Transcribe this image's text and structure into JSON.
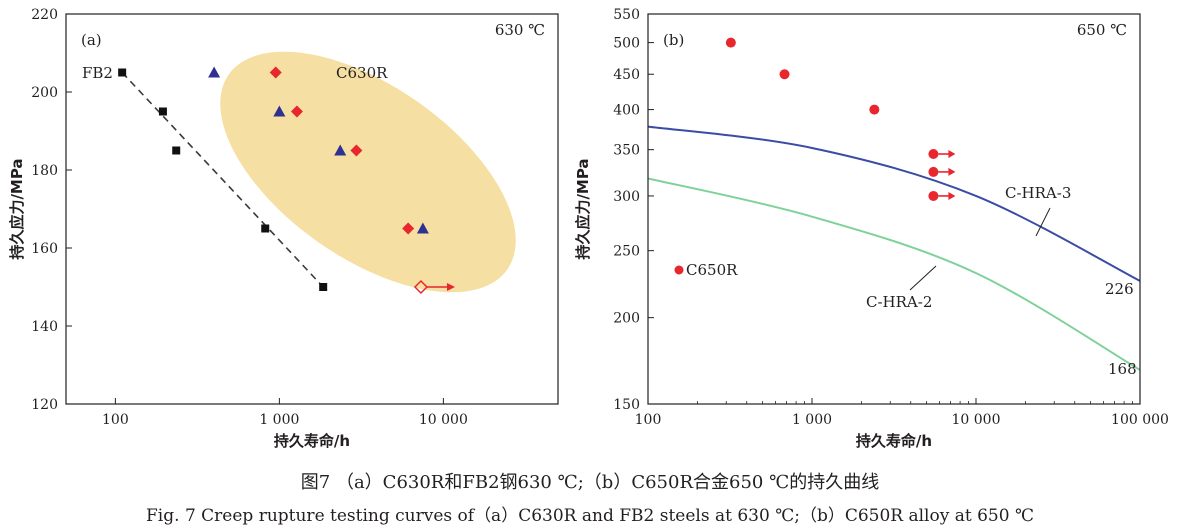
{
  "chart_data": [
    {
      "type": "scatter",
      "panel_label": "(a)",
      "temperature_label": "630 ℃",
      "xscale": "log",
      "xlim": [
        50,
        50000
      ],
      "ylim": [
        120,
        220
      ],
      "xticks": [
        {
          "v": 100,
          "label": "100"
        },
        {
          "v": 1000,
          "label": "1 000"
        },
        {
          "v": 10000,
          "label": "10 000"
        }
      ],
      "yticks": [
        {
          "v": 120,
          "label": "120"
        },
        {
          "v": 140,
          "label": "140"
        },
        {
          "v": 160,
          "label": "160"
        },
        {
          "v": 180,
          "label": "180"
        },
        {
          "v": 200,
          "label": "200"
        },
        {
          "v": 220,
          "label": "220"
        }
      ],
      "xlabel": "持久寿命/h",
      "ylabel": "持久应力/MPa",
      "region_label": "C630R",
      "series": [
        {
          "name": "FB2",
          "marker": "square",
          "color": "#111111",
          "label": "FB2",
          "points": [
            {
              "x": 110,
              "y": 205
            },
            {
              "x": 195,
              "y": 195
            },
            {
              "x": 235,
              "y": 185
            },
            {
              "x": 820,
              "y": 165
            },
            {
              "x": 1850,
              "y": 150
            }
          ],
          "fit_line": [
            {
              "x": 110,
              "y": 205
            },
            {
              "x": 1850,
              "y": 150
            }
          ]
        },
        {
          "name": "C630R triangles",
          "marker": "triangle",
          "color": "#2e3191",
          "points": [
            {
              "x": 400,
              "y": 205
            },
            {
              "x": 1000,
              "y": 195
            },
            {
              "x": 2350,
              "y": 185
            },
            {
              "x": 7500,
              "y": 165
            }
          ]
        },
        {
          "name": "C630R diamonds",
          "marker": "diamond",
          "color": "#e8262d",
          "points": [
            {
              "x": 950,
              "y": 205
            },
            {
              "x": 1280,
              "y": 195
            },
            {
              "x": 2950,
              "y": 185
            },
            {
              "x": 6100,
              "y": 165
            }
          ]
        },
        {
          "name": "C630R running",
          "marker": "open-diamond-arrow",
          "color": "#e8262d",
          "points": [
            {
              "x": 7300,
              "y": 150
            }
          ]
        }
      ]
    },
    {
      "type": "scatter",
      "panel_label": "(b)",
      "temperature_label": "650 ℃",
      "xscale": "log",
      "yscale": "log",
      "xlim": [
        100,
        100000
      ],
      "ylim": [
        150,
        550
      ],
      "xticks": [
        {
          "v": 100,
          "label": "100"
        },
        {
          "v": 1000,
          "label": "1 000"
        },
        {
          "v": 10000,
          "label": "10 000"
        },
        {
          "v": 100000,
          "label": "100 000"
        }
      ],
      "yticks": [
        {
          "v": 150,
          "label": "150"
        },
        {
          "v": 200,
          "label": "200"
        },
        {
          "v": 250,
          "label": "250"
        },
        {
          "v": 300,
          "label": "300"
        },
        {
          "v": 350,
          "label": "350"
        },
        {
          "v": 400,
          "label": "400"
        },
        {
          "v": 450,
          "label": "450"
        },
        {
          "v": 500,
          "label": "500"
        },
        {
          "v": 550,
          "label": "550"
        }
      ],
      "xlabel": "持久寿命/h",
      "ylabel": "持久应力/MPa",
      "series": [
        {
          "name": "C650R",
          "marker": "circle",
          "color": "#e8262d",
          "legend": "C650R",
          "points": [
            {
              "x": 320,
              "y": 500
            },
            {
              "x": 680,
              "y": 450
            },
            {
              "x": 2400,
              "y": 400
            }
          ]
        },
        {
          "name": "C650R running",
          "marker": "circle-arrow",
          "color": "#e8262d",
          "points": [
            {
              "x": 5500,
              "y": 345
            },
            {
              "x": 5500,
              "y": 325
            },
            {
              "x": 5500,
              "y": 300
            }
          ]
        },
        {
          "name": "C-HRA-3",
          "type": "line",
          "color": "#3b4ba6",
          "label": "C-HRA-3",
          "end_label": "226",
          "points": [
            {
              "x": 100,
              "y": 378
            },
            {
              "x": 1000,
              "y": 352
            },
            {
              "x": 10000,
              "y": 300
            },
            {
              "x": 100000,
              "y": 226
            }
          ]
        },
        {
          "name": "C-HRA-2",
          "type": "line",
          "color": "#7fd19a",
          "label": "C-HRA-2",
          "end_label": "168",
          "points": [
            {
              "x": 100,
              "y": 318
            },
            {
              "x": 1000,
              "y": 280
            },
            {
              "x": 10000,
              "y": 232
            },
            {
              "x": 100000,
              "y": 168
            }
          ]
        }
      ]
    }
  ],
  "caption": {
    "cn": "图7 （a）C630R和FB2钢630 ℃;（b）C650R合金650 ℃的持久曲线",
    "en": "Fig. 7 Creep rupture testing curves of（a）C630R and FB2 steels at 630 ℃;（b）C650R alloy at 650 ℃"
  }
}
